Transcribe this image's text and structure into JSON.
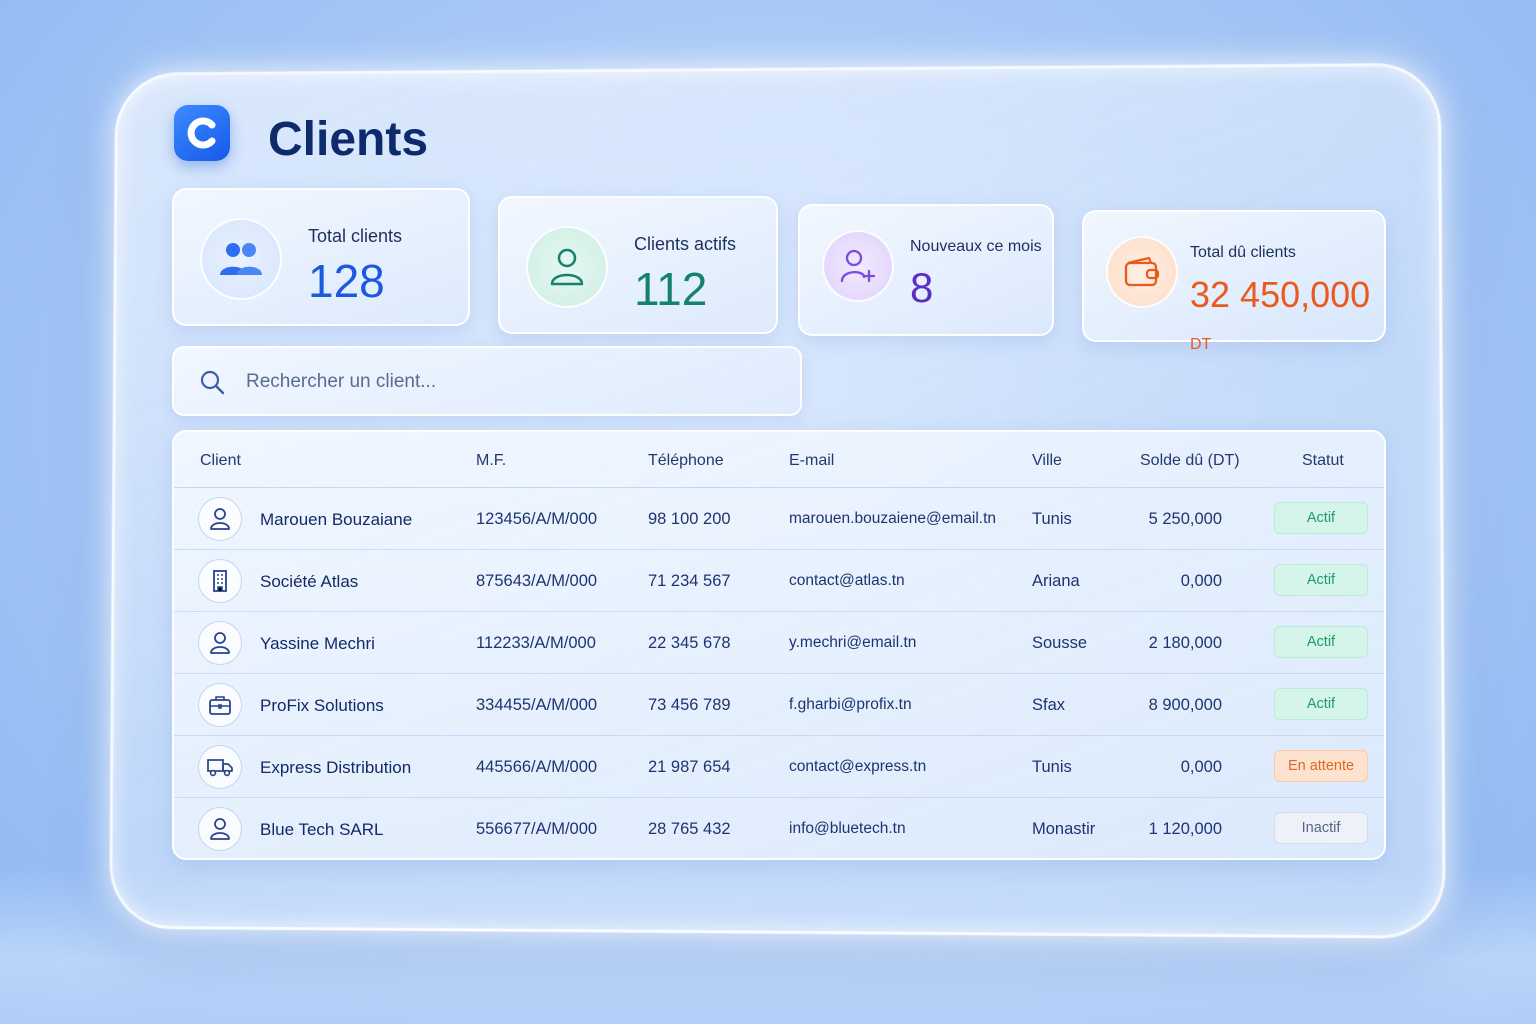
{
  "header": {
    "title": "Clients",
    "logo_icon": "c-logo-icon"
  },
  "stats": [
    {
      "label": "Total clients",
      "value": "128",
      "unit": "",
      "icon": "users-icon",
      "color": "#1c58e0"
    },
    {
      "label": "Clients actifs",
      "value": "112",
      "unit": "",
      "icon": "user-icon",
      "color": "#13836b"
    },
    {
      "label": "Nouveaux ce mois",
      "value": "8",
      "unit": "",
      "icon": "user-plus-icon",
      "color": "#5b2fc4"
    },
    {
      "label": "Total dû clients",
      "value": "32 450,000",
      "unit": "DT",
      "icon": "wallet-icon",
      "color": "#ea5a1c"
    }
  ],
  "search": {
    "placeholder": "Rechercher un client...",
    "value": ""
  },
  "table": {
    "columns": [
      "Client",
      "M.F.",
      "Téléphone",
      "E-mail",
      "Ville",
      "Solde dû (DT)",
      "Statut"
    ],
    "rows": [
      {
        "name": "Marouen Bouzaiane",
        "mf": "123456/A/M/000",
        "phone": "98 100 200",
        "email": "marouen.bouzaiene@email.tn",
        "city": "Tunis",
        "balance": "5 250,000",
        "status": "Actif",
        "icon": "user-icon"
      },
      {
        "name": "Société Atlas",
        "mf": "875643/A/M/000",
        "phone": "71 234 567",
        "email": "contact@atlas.tn",
        "city": "Ariana",
        "balance": "0,000",
        "status": "Actif",
        "icon": "building-icon"
      },
      {
        "name": "Yassine Mechri",
        "mf": "112233/A/M/000",
        "phone": "22 345 678",
        "email": "y.mechri@email.tn",
        "city": "Sousse",
        "balance": "2 180,000",
        "status": "Actif",
        "icon": "user-icon"
      },
      {
        "name": "ProFix Solutions",
        "mf": "334455/A/M/000",
        "phone": "73 456 789",
        "email": "f.gharbi@profix.tn",
        "city": "Sfax",
        "balance": "8 900,000",
        "status": "Actif",
        "icon": "briefcase-icon"
      },
      {
        "name": "Express Distribution",
        "mf": "445566/A/M/000",
        "phone": "21 987 654",
        "email": "contact@express.tn",
        "city": "Tunis",
        "balance": "0,000",
        "status": "En attente",
        "icon": "truck-icon"
      },
      {
        "name": "Blue Tech SARL",
        "mf": "556677/A/M/000",
        "phone": "28 765 432",
        "email": "info@bluetech.tn",
        "city": "Monastir",
        "balance": "1 120,000",
        "status": "Inactif",
        "icon": "user-icon"
      }
    ]
  }
}
